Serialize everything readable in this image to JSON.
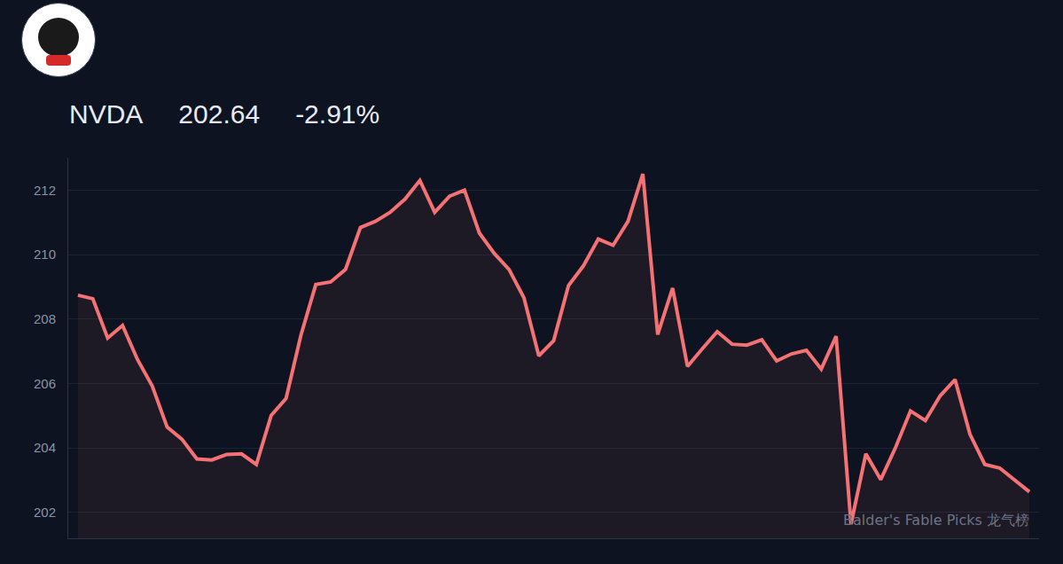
{
  "chart_data": {
    "type": "line",
    "title": "NVDA",
    "annotations": [
      "202.64",
      "-2.91%",
      "Balder's Fable Picks 龙气榜"
    ],
    "categories": [
      null,
      null,
      null,
      null,
      null,
      null,
      null,
      null,
      null,
      null,
      null,
      null,
      null,
      null,
      null,
      null,
      null,
      null,
      null,
      null,
      null,
      null,
      null,
      null,
      null,
      null,
      null,
      null,
      null,
      null,
      null,
      null,
      null,
      null,
      null,
      null,
      null,
      null,
      null,
      null,
      null,
      null,
      null,
      null,
      null,
      null,
      null,
      null,
      null,
      null,
      null,
      null,
      null,
      null,
      null,
      null,
      null,
      null,
      null,
      null,
      null,
      null,
      null,
      null,
      null
    ],
    "values": [
      208.74,
      208.63,
      207.41,
      207.8,
      206.75,
      205.92,
      204.65,
      204.27,
      203.66,
      203.63,
      203.8,
      203.82,
      203.49,
      205.01,
      205.54,
      207.5,
      209.07,
      209.15,
      209.54,
      210.84,
      211.03,
      211.31,
      211.72,
      212.3,
      211.31,
      211.81,
      212.0,
      210.67,
      210.04,
      209.54,
      208.66,
      206.86,
      207.33,
      209.04,
      209.65,
      210.48,
      210.29,
      211.03,
      212.5,
      207.52,
      208.96,
      206.53,
      207.08,
      207.61,
      207.22,
      207.19,
      207.36,
      206.7,
      206.92,
      207.03,
      206.45,
      207.47,
      201.64,
      203.82,
      203.02,
      204.02,
      205.15,
      204.85,
      205.62,
      206.12,
      204.43,
      203.49,
      203.38,
      203.0,
      202.64
    ],
    "color": "#f47174",
    "ylim": [
      201.2,
      213
    ],
    "yticks": [
      202,
      204,
      206,
      208,
      210,
      212
    ],
    "grid": true,
    "tick_labels": "y"
  }
}
